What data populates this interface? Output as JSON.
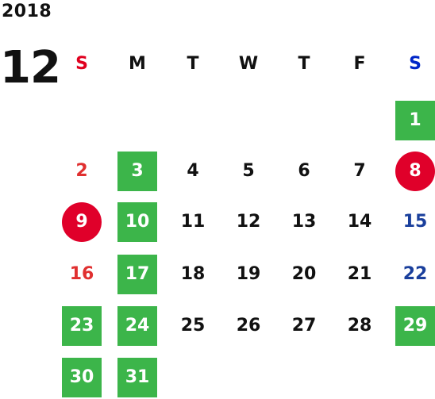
{
  "calendar": {
    "year": "2018",
    "month": "12",
    "weekdays": [
      "S",
      "M",
      "T",
      "W",
      "T",
      "F",
      "S"
    ],
    "colors": {
      "sunday": "#e03030",
      "saturday": "#1a3f9c",
      "green_highlight": "#3cb54a",
      "red_circle": "#e0002a",
      "sunday_header": "#e0001f",
      "saturday_header": "#0026c8"
    },
    "weeks": [
      [
        "",
        "",
        "",
        "",
        "",
        "",
        "1"
      ],
      [
        "2",
        "3",
        "4",
        "5",
        "6",
        "7",
        "8"
      ],
      [
        "9",
        "10",
        "11",
        "12",
        "13",
        "14",
        "15"
      ],
      [
        "16",
        "17",
        "18",
        "19",
        "20",
        "21",
        "22"
      ],
      [
        "23",
        "24",
        "25",
        "26",
        "27",
        "28",
        "29"
      ],
      [
        "30",
        "31",
        "",
        "",
        "",
        "",
        ""
      ]
    ],
    "highlights": {
      "green": [
        "1",
        "3",
        "10",
        "17",
        "23",
        "24",
        "29",
        "30",
        "31"
      ],
      "red_circle": [
        "8",
        "9"
      ]
    }
  }
}
